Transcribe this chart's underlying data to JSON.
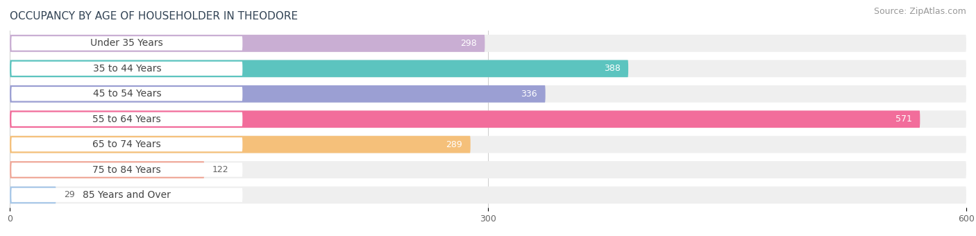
{
  "title": "OCCUPANCY BY AGE OF HOUSEHOLDER IN THEODORE",
  "source": "Source: ZipAtlas.com",
  "categories": [
    "Under 35 Years",
    "35 to 44 Years",
    "45 to 54 Years",
    "55 to 64 Years",
    "65 to 74 Years",
    "75 to 84 Years",
    "85 Years and Over"
  ],
  "values": [
    298,
    388,
    336,
    571,
    289,
    122,
    29
  ],
  "bar_colors": [
    "#c9aed3",
    "#5cc4bf",
    "#9b9fd3",
    "#f26d9b",
    "#f5c07a",
    "#f0a99a",
    "#a8c8e8"
  ],
  "bar_bg_color": "#efefef",
  "label_bg_color": "#ffffff",
  "xlim": [
    0,
    600
  ],
  "xticks": [
    0,
    300,
    600
  ],
  "label_inside_color": "#ffffff",
  "label_outside_color": "#666666",
  "title_fontsize": 11,
  "source_fontsize": 9,
  "tick_fontsize": 9,
  "bar_label_fontsize": 9,
  "category_fontsize": 10,
  "value_threshold": 150
}
